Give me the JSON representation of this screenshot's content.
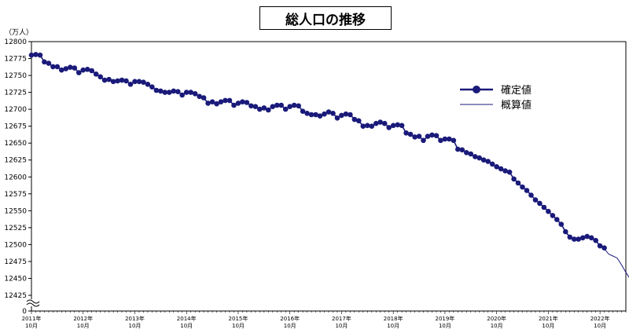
{
  "chart_data": {
    "type": "line",
    "title": "総人口の推移",
    "yunit": "（万人）",
    "ylim": [
      12400,
      12800
    ],
    "yticks": [
      12425,
      12450,
      12475,
      12500,
      12525,
      12550,
      12575,
      12600,
      12625,
      12650,
      12675,
      12700,
      12725,
      12750,
      12775,
      12800
    ],
    "yzero_label": "0",
    "y_axis_break": true,
    "x_start": "2011-10",
    "x_end": "2023-04",
    "xtick_labels": [
      {
        "year": "2011年",
        "month": "10月",
        "index": 0
      },
      {
        "year": "2012年",
        "month": "10月",
        "index": 12
      },
      {
        "year": "2013年",
        "month": "10月",
        "index": 24
      },
      {
        "year": "2014年",
        "month": "10月",
        "index": 36
      },
      {
        "year": "2015年",
        "month": "10月",
        "index": 48
      },
      {
        "year": "2016年",
        "month": "10月",
        "index": 60
      },
      {
        "year": "2017年",
        "month": "10月",
        "index": 72
      },
      {
        "year": "2018年",
        "month": "10月",
        "index": 84
      },
      {
        "year": "2019年",
        "month": "10月",
        "index": 96
      },
      {
        "year": "2020年",
        "month": "10月",
        "index": 108
      },
      {
        "year": "2021年",
        "month": "10月",
        "index": 120
      },
      {
        "year": "2022年",
        "month": "10月",
        "index": 132
      }
    ],
    "series": [
      {
        "name": "確定値",
        "color": "#1a1a7a",
        "marker": "circle",
        "start": "2011-10",
        "values": [
          12780,
          12781,
          12780,
          12770,
          12768,
          12763,
          12763,
          12758,
          12760,
          12762,
          12761,
          12754,
          12758,
          12759,
          12757,
          12752,
          12748,
          12743,
          12744,
          12741,
          12742,
          12743,
          12742,
          12737,
          12741,
          12741,
          12740,
          12737,
          12733,
          12728,
          12727,
          12725,
          12725,
          12727,
          12726,
          12721,
          12725,
          12725,
          12723,
          12719,
          12717,
          12709,
          12711,
          12708,
          12711,
          12713,
          12713,
          12706,
          12709,
          12711,
          12710,
          12705,
          12704,
          12700,
          12702,
          12699,
          12704,
          12706,
          12706,
          12700,
          12704,
          12706,
          12705,
          12697,
          12694,
          12692,
          12692,
          12690,
          12693,
          12696,
          12694,
          12687,
          12691,
          12693,
          12692,
          12685,
          12683,
          12675,
          12676,
          12675,
          12679,
          12681,
          12679,
          12673,
          12676,
          12677,
          12676,
          12665,
          12663,
          12659,
          12660,
          12654,
          12660,
          12662,
          12661,
          12654,
          12656,
          12656,
          12654,
          12641,
          12640,
          12636,
          12634,
          12630,
          12628,
          12625,
          12623,
          12619,
          12615,
          12612,
          12609,
          12607,
          12597,
          12591,
          12585,
          12580,
          12573,
          12566,
          12561,
          12555,
          12549,
          12543,
          12537,
          12530,
          12519,
          12511,
          12508,
          12508,
          12510,
          12512,
          12510,
          12506,
          12498,
          12495
        ]
      },
      {
        "name": "概算値",
        "color": "#1a1a7a",
        "marker": "none",
        "start": "2022-11",
        "values": [
          12494,
          12486,
          12483,
          12480,
          12470,
          12459,
          12449
        ]
      }
    ],
    "legend_position": "right-middle"
  }
}
